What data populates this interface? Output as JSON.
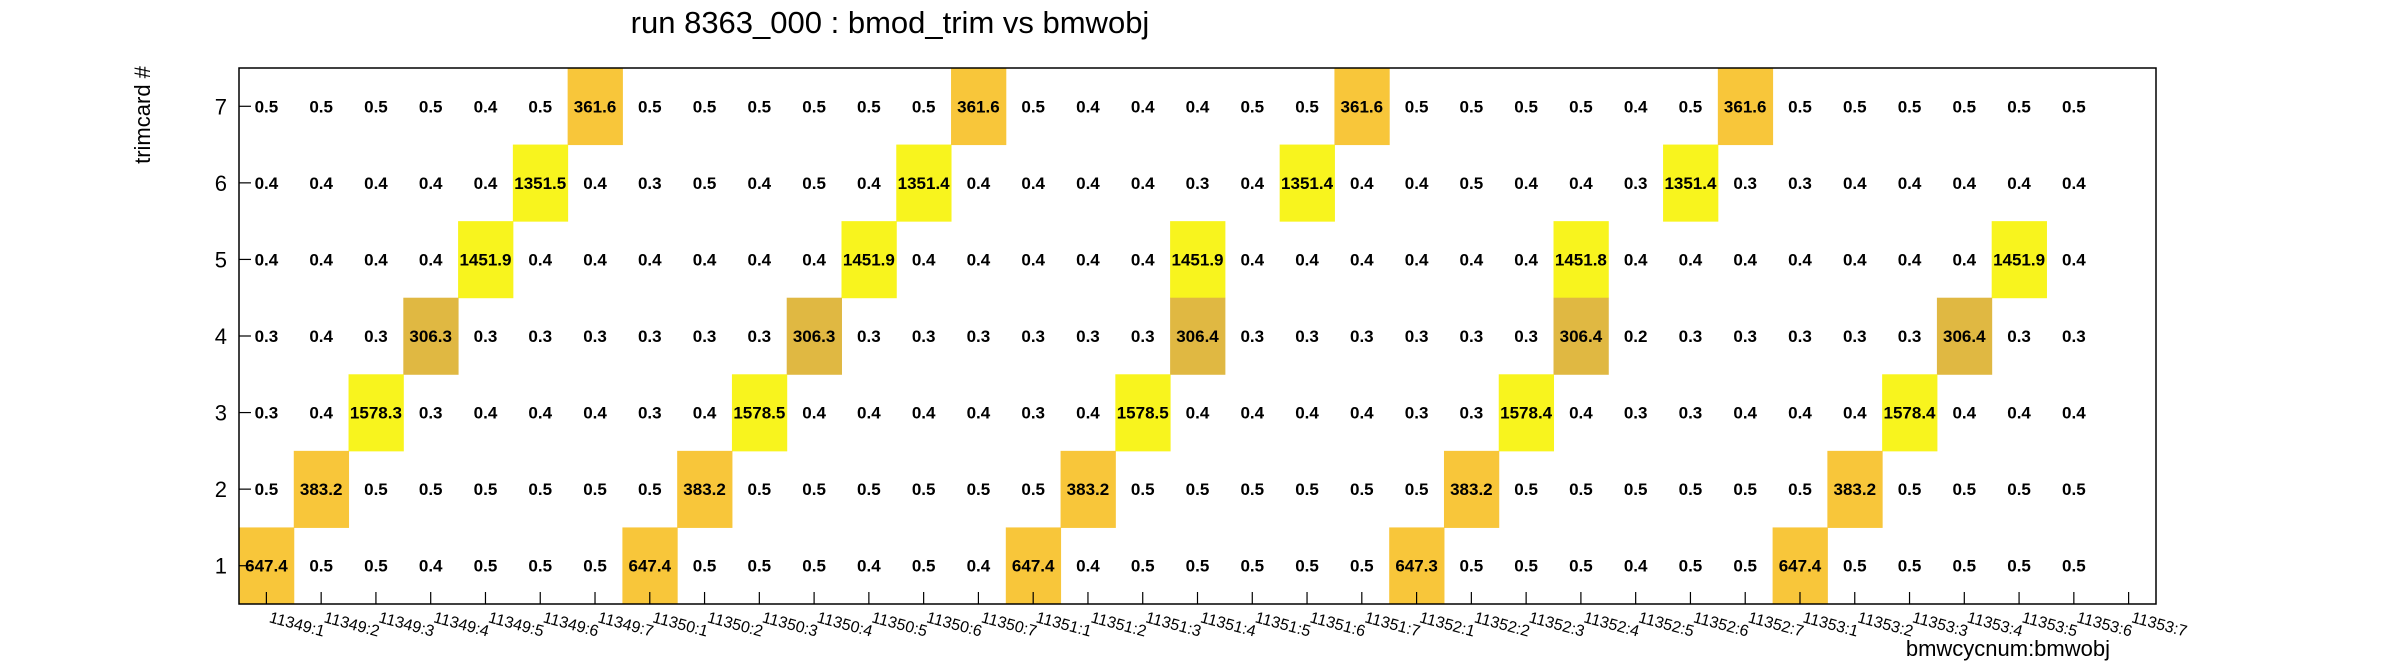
{
  "chart_data": {
    "type": "heatmap",
    "title": "run 8363_000 : bmod_trim vs bmwobj",
    "xlabel": "bmwcycnum:bmwobj",
    "ylabel": "trimcard #",
    "x_categories": [
      "11349:1",
      "11349:2",
      "11349:3",
      "11349:4",
      "11349:5",
      "11349:6",
      "11349:7",
      "11350:1",
      "11350:2",
      "11350:3",
      "11350:4",
      "11350:5",
      "11350:6",
      "11350:7",
      "11351:1",
      "11351:2",
      "11351:3",
      "11351:4",
      "11351:5",
      "11351:6",
      "11351:7",
      "11352:1",
      "11352:2",
      "11352:3",
      "11352:4",
      "11352:5",
      "11352:6",
      "11352:7",
      "11353:1",
      "11353:2",
      "11353:3",
      "11353:4",
      "11353:5",
      "11353:6",
      "11353:7"
    ],
    "y_categories": [
      "1",
      "2",
      "3",
      "4",
      "5",
      "6",
      "7"
    ],
    "rows": [
      {
        "y": "7",
        "values": [
          "0.5",
          "0.5",
          "0.5",
          "0.5",
          "0.4",
          "0.5",
          "361.6",
          "0.5",
          "0.5",
          "0.5",
          "0.5",
          "0.5",
          "0.5",
          "361.6",
          "0.5",
          "0.4",
          "0.4",
          "0.4",
          "0.5",
          "0.5",
          "361.6",
          "0.5",
          "0.5",
          "0.5",
          "0.5",
          "0.4",
          "0.5",
          "361.6",
          "0.5",
          "0.5",
          "0.5",
          "0.5",
          "0.5",
          "0.5",
          ""
        ]
      },
      {
        "y": "6",
        "values": [
          "0.4",
          "0.4",
          "0.4",
          "0.4",
          "0.4",
          "1351.5",
          "0.4",
          "0.3",
          "0.5",
          "0.4",
          "0.5",
          "0.4",
          "1351.4",
          "0.4",
          "0.4",
          "0.4",
          "0.4",
          "0.3",
          "0.4",
          "1351.4",
          "0.4",
          "0.4",
          "0.5",
          "0.4",
          "0.4",
          "0.3",
          "1351.4",
          "0.3",
          "0.3",
          "0.4",
          "0.4",
          "0.4",
          "0.4",
          "0.4",
          ""
        ]
      },
      {
        "y": "5",
        "values": [
          "0.4",
          "0.4",
          "0.4",
          "0.4",
          "1451.9",
          "0.4",
          "0.4",
          "0.4",
          "0.4",
          "0.4",
          "0.4",
          "1451.9",
          "0.4",
          "0.4",
          "0.4",
          "0.4",
          "0.4",
          "1451.9",
          "0.4",
          "0.4",
          "0.4",
          "0.4",
          "0.4",
          "0.4",
          "1451.8",
          "0.4",
          "0.4",
          "0.4",
          "0.4",
          "0.4",
          "0.4",
          "0.4",
          "1451.9",
          "0.4",
          ""
        ]
      },
      {
        "y": "4",
        "values": [
          "0.3",
          "0.4",
          "0.3",
          "306.3",
          "0.3",
          "0.3",
          "0.3",
          "0.3",
          "0.3",
          "0.3",
          "306.3",
          "0.3",
          "0.3",
          "0.3",
          "0.3",
          "0.3",
          "0.3",
          "306.4",
          "0.3",
          "0.3",
          "0.3",
          "0.3",
          "0.3",
          "0.3",
          "306.4",
          "0.2",
          "0.3",
          "0.3",
          "0.3",
          "0.3",
          "0.3",
          "306.4",
          "0.3",
          "0.3",
          ""
        ]
      },
      {
        "y": "3",
        "values": [
          "0.3",
          "0.4",
          "1578.3",
          "0.3",
          "0.4",
          "0.4",
          "0.4",
          "0.3",
          "0.4",
          "1578.5",
          "0.4",
          "0.4",
          "0.4",
          "0.4",
          "0.3",
          "0.4",
          "1578.5",
          "0.4",
          "0.4",
          "0.4",
          "0.4",
          "0.3",
          "0.3",
          "1578.4",
          "0.4",
          "0.3",
          "0.3",
          "0.4",
          "0.4",
          "0.4",
          "1578.4",
          "0.4",
          "0.4",
          "0.4",
          ""
        ]
      },
      {
        "y": "2",
        "values": [
          "0.5",
          "383.2",
          "0.5",
          "0.5",
          "0.5",
          "0.5",
          "0.5",
          "0.5",
          "383.2",
          "0.5",
          "0.5",
          "0.5",
          "0.5",
          "0.5",
          "0.5",
          "383.2",
          "0.5",
          "0.5",
          "0.5",
          "0.5",
          "0.5",
          "0.5",
          "383.2",
          "0.5",
          "0.5",
          "0.5",
          "0.5",
          "0.5",
          "0.5",
          "383.2",
          "0.5",
          "0.5",
          "0.5",
          "0.5",
          ""
        ]
      },
      {
        "y": "1",
        "values": [
          "647.4",
          "0.5",
          "0.5",
          "0.4",
          "0.5",
          "0.5",
          "0.5",
          "647.4",
          "0.5",
          "0.5",
          "0.5",
          "0.4",
          "0.5",
          "0.4",
          "647.4",
          "0.4",
          "0.5",
          "0.5",
          "0.5",
          "0.5",
          "0.5",
          "647.3",
          "0.5",
          "0.5",
          "0.5",
          "0.4",
          "0.5",
          "0.5",
          "647.4",
          "0.5",
          "0.5",
          "0.5",
          "0.5",
          "0.5",
          ""
        ]
      }
    ],
    "value_colors": {
      "361.6": "#f8c63a",
      "1351.5": "#f8f41e",
      "1351.4": "#f8f41e",
      "1451.9": "#f8f41e",
      "1451.8": "#f8f41e",
      "306.3": "#e0b842",
      "306.4": "#e0b842",
      "1578.3": "#f8f41e",
      "1578.5": "#f8f41e",
      "1578.4": "#f8f41e",
      "383.2": "#f8c63a",
      "647.4": "#f8c63a",
      "647.3": "#f8c63a"
    },
    "grid": false,
    "legend": "none"
  }
}
